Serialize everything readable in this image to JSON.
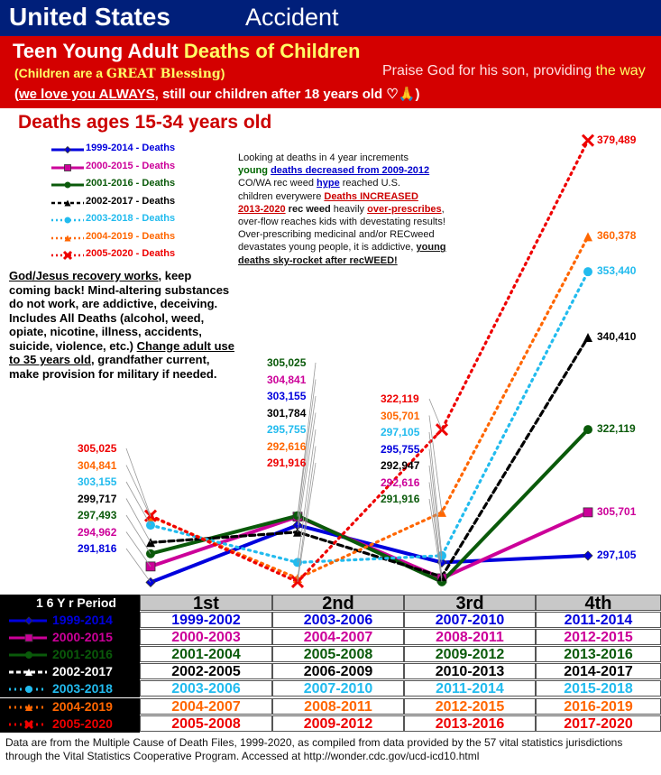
{
  "header": {
    "title_left": "United States",
    "title_right": "Accident",
    "line1_pre": "Teen Young Adult ",
    "line1_hl": "Deaths of Children",
    "line2_a": "(Children are a ",
    "line2_b": "GREAT Blessing",
    "line2_c": ")",
    "line3_u": "we love you ALWAYS",
    "line3_rest": ", still our children after 18 years old ♡🙏)",
    "line3_open": "(",
    "praise_a": "Praise God for his son, providing ",
    "praise_b": "the way"
  },
  "note": {
    "p1": "Looking at deaths in 4 year increments",
    "p2a": "young ",
    "p2b": "deaths decreased from 2009-2012",
    "p3a": "CO/WA rec weed ",
    "p3b": "hype",
    "p3c": " reached U.S.",
    "p4a": "children everywere ",
    "p4b": "Deaths INCREASED",
    "p5a": "2013-2020",
    "p5b": " rec weed",
    "p5c": " heavily ",
    "p5d": "over-prescribes",
    "p5e": ", over-flow reaches kids with devestating results! Over-prescribing medicinal and/or RECweed devastates young people, it is addictive, ",
    "p5f": "young deaths sky-rocket after recWEED!"
  },
  "god_box": {
    "u1": "God/Jesus recovery works",
    "t1": ", keep coming back!  Mind-altering substances do not work, are addictive, deceiving. Includes All Deaths (alcohol, weed, opiate, nicotine, illness, accidents, suicide, violence, etc.)  ",
    "u2": "Change adult use to 35 years old",
    "t2": ",  grandfather current, make provision for military  if needed."
  },
  "table": {
    "period_label": "1 6 Y r Period",
    "headers": [
      "1st",
      "2nd",
      "3rd",
      "4th"
    ],
    "rows": [
      {
        "label": "1999-2014",
        "cells": [
          "1999-2002",
          "2003-2006",
          "2007-2010",
          "2011-2014"
        ]
      },
      {
        "label": "2000-2015",
        "cells": [
          "2000-2003",
          "2004-2007",
          "2008-2011",
          "2012-2015"
        ]
      },
      {
        "label": "2001-2016",
        "cells": [
          "2001-2004",
          "2005-2008",
          "2009-2012",
          "2013-2016"
        ]
      },
      {
        "label": "2002-2017",
        "cells": [
          "2002-2005",
          "2006-2009",
          "2010-2013",
          "2014-2017"
        ]
      },
      {
        "label": "2003-2018",
        "cells": [
          "2003-2006",
          "2007-2010",
          "2011-2014",
          "2015-2018"
        ]
      },
      {
        "label": "2004-2019",
        "cells": [
          "2004-2007",
          "2008-2011",
          "2012-2015",
          "2016-2019"
        ]
      },
      {
        "label": "2005-2020",
        "cells": [
          "2005-2008",
          "2009-2012",
          "2013-2016",
          "2017-2020"
        ]
      }
    ]
  },
  "footer": "Data are from the Multiple Cause of Death Files, 1999-2020, as compiled from data provided by the 57 vital statistics jurisdictions through the Vital Statistics Cooperative Program. Accessed at http://wonder.cdc.gov/ucd-icd10.html",
  "chart_data": {
    "type": "line",
    "title": "Deaths ages 15-34 years old",
    "categories": [
      "1st",
      "2nd",
      "3rd",
      "4th"
    ],
    "series": [
      {
        "name": "1999-2014 - Deaths",
        "color": "#0000dd",
        "marker": "diamond",
        "dash": "solid",
        "values": [
          291816,
          303155,
          295755,
          297105
        ],
        "labels": [
          "291,816",
          "303,155",
          "295,755",
          "297,105"
        ]
      },
      {
        "name": "2000-2015 - Deaths",
        "color": "#cc0099",
        "marker": "square",
        "dash": "solid",
        "values": [
          294962,
          304841,
          292616,
          305701
        ],
        "labels": [
          "294,962",
          "304,841",
          "292,616",
          "305,701"
        ]
      },
      {
        "name": "2001-2016 - Deaths",
        "color": "#0a5a0a",
        "marker": "circle",
        "dash": "solid",
        "values": [
          297493,
          305025,
          291916,
          322119
        ],
        "labels": [
          "297,493",
          "305,025",
          "291,916",
          "322,119"
        ]
      },
      {
        "name": "2002-2017 - Deaths",
        "color": "#000000",
        "marker": "triangle",
        "dash": "dashed",
        "values": [
          299717,
          301784,
          292947,
          340410
        ],
        "labels": [
          "299,717",
          "301,784",
          "292,947",
          "340,410"
        ]
      },
      {
        "name": "2003-2018 - Deaths",
        "color": "#22bbee",
        "marker": "circle",
        "dash": "dotted",
        "values": [
          303155,
          295755,
          297105,
          353440
        ],
        "labels": [
          "303,155",
          "295,755",
          "297,105",
          "353,440"
        ]
      },
      {
        "name": "2004-2019 - Deaths",
        "color": "#ff6600",
        "marker": "triangle",
        "dash": "dotted",
        "values": [
          304841,
          292616,
          305701,
          360378
        ],
        "labels": [
          "304,841",
          "292,616",
          "305,701",
          "360,378"
        ]
      },
      {
        "name": "2005-2020 - Deaths",
        "color": "#ee0000",
        "marker": "x",
        "dash": "dotted",
        "values": [
          305025,
          291916,
          322119,
          379489
        ],
        "labels": [
          "305,025",
          "291,916",
          "322,119",
          "379,489"
        ]
      }
    ]
  }
}
